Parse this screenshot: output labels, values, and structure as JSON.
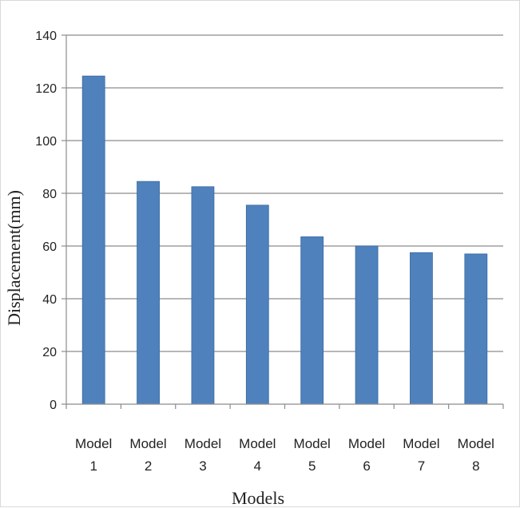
{
  "chart_data": {
    "type": "bar",
    "title": "",
    "xlabel": "Models",
    "ylabel": "Displacement(mm)",
    "categories": [
      [
        "Model",
        "1"
      ],
      [
        "Model",
        "2"
      ],
      [
        "Model",
        "3"
      ],
      [
        "Model",
        "4"
      ],
      [
        "Model",
        "5"
      ],
      [
        "Model",
        "6"
      ],
      [
        "Model",
        "7"
      ],
      [
        "Model",
        "8"
      ]
    ],
    "values": [
      124.5,
      84.5,
      82.5,
      75.5,
      63.5,
      60.0,
      57.5,
      57.0
    ],
    "ylim": [
      0,
      140
    ],
    "yticks": [
      0,
      20,
      40,
      60,
      80,
      100,
      120,
      140
    ],
    "grid": true,
    "legend": "none",
    "colors": {
      "bar": "#4F81BD",
      "bar_edge": "#3B6AA0",
      "grid": "#8c8c8c",
      "axis": "#8c8c8c"
    }
  }
}
